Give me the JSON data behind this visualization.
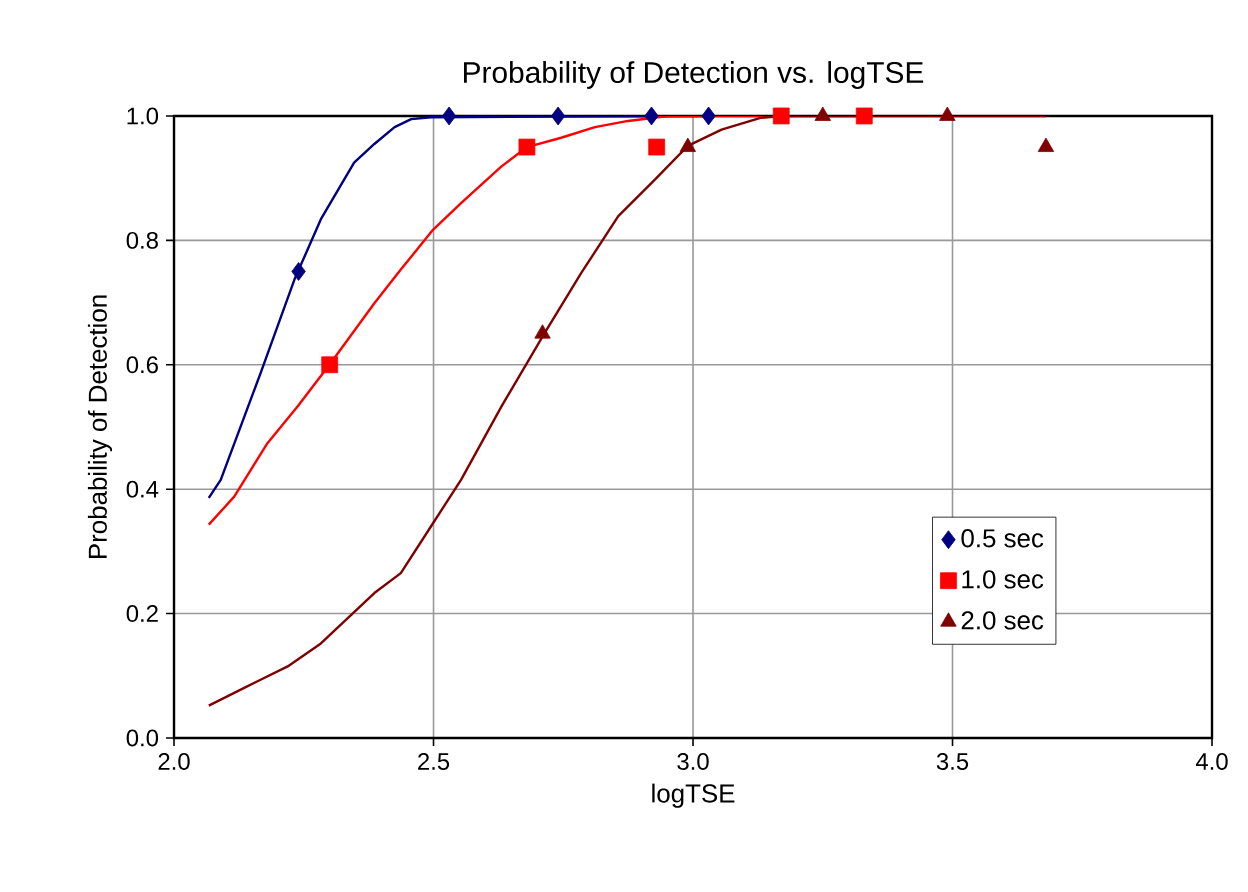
{
  "chart_data": {
    "type": "line",
    "title": "Probability of Detection vs. logTSE",
    "xlabel": "logTSE",
    "ylabel": "Probability of Detection",
    "xlim": [
      2.0,
      4.0
    ],
    "ylim": [
      0.0,
      1.0
    ],
    "xticks": [
      {
        "value": 2.0,
        "label": "2.0"
      },
      {
        "value": 2.5,
        "label": "2.5"
      },
      {
        "value": 3.0,
        "label": "3.0"
      },
      {
        "value": 3.5,
        "label": "3.5"
      },
      {
        "value": 4.0,
        "label": "4.0"
      }
    ],
    "yticks": [
      {
        "value": 0.0,
        "label": "0.0"
      },
      {
        "value": 0.2,
        "label": "0.2"
      },
      {
        "value": 0.4,
        "label": "0.4"
      },
      {
        "value": 0.6,
        "label": "0.6"
      },
      {
        "value": 0.8,
        "label": "0.8"
      },
      {
        "value": 1.0,
        "label": "1.0"
      }
    ],
    "grid": true,
    "legend": "bottom right",
    "series": [
      {
        "color": "#000080",
        "marker": "none",
        "x": [
          2.067,
          2.09,
          2.167,
          2.232,
          2.283,
          2.347,
          2.386,
          2.425,
          2.457,
          2.495,
          3.03
        ],
        "values": [
          0.386,
          0.415,
          0.587,
          0.737,
          0.834,
          0.925,
          0.955,
          0.982,
          0.995,
          0.998,
          1.0
        ]
      },
      {
        "color": "#ff0000",
        "marker": "none",
        "x": [
          2.067,
          2.116,
          2.18,
          2.238,
          2.302,
          2.386,
          2.437,
          2.499,
          2.553,
          2.631,
          2.68,
          2.746,
          2.811,
          2.875,
          2.952,
          3.33
        ],
        "values": [
          0.343,
          0.388,
          0.474,
          0.533,
          0.603,
          0.699,
          0.753,
          0.817,
          0.86,
          0.919,
          0.95,
          0.965,
          0.982,
          0.992,
          1.0,
          1.0
        ]
      },
      {
        "color": "#800000",
        "marker": "none",
        "x": [
          2.067,
          2.141,
          2.219,
          2.283,
          2.386,
          2.437,
          2.495,
          2.553,
          2.631,
          2.714,
          2.785,
          2.856,
          2.927,
          2.99,
          3.055,
          3.13,
          3.17,
          3.68
        ],
        "values": [
          0.052,
          0.083,
          0.115,
          0.152,
          0.233,
          0.265,
          0.34,
          0.415,
          0.533,
          0.651,
          0.748,
          0.839,
          0.898,
          0.952,
          0.978,
          0.997,
          1.0,
          1.0
        ]
      },
      {
        "type": "scatter",
        "name": "0.5 sec",
        "color": "#000080",
        "marker": "diamond",
        "x": [
          2.24,
          2.53,
          2.74,
          2.92,
          3.03
        ],
        "values": [
          0.75,
          1.0,
          1.0,
          1.0,
          1.0
        ]
      },
      {
        "type": "scatter",
        "name": "1.0 sec",
        "color": "#ff0000",
        "marker": "square",
        "x": [
          2.3,
          2.68,
          2.93,
          3.17,
          3.33
        ],
        "values": [
          0.6,
          0.95,
          0.95,
          1.0,
          1.0
        ]
      },
      {
        "type": "scatter",
        "name": "2.0 sec",
        "color": "#800000",
        "marker": "triangle",
        "x": [
          2.71,
          2.99,
          3.25,
          3.49,
          3.68
        ],
        "values": [
          0.65,
          0.95,
          1.0,
          1.0,
          0.95
        ]
      }
    ]
  }
}
